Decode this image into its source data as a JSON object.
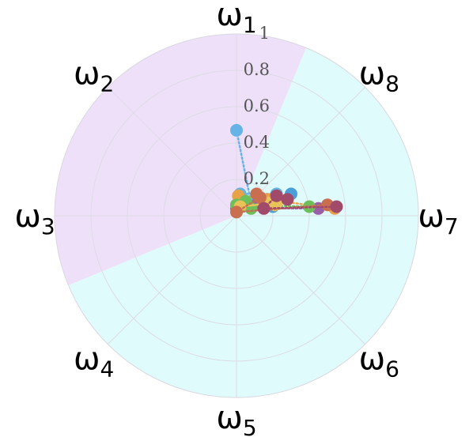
{
  "chart_data": {
    "type": "radar",
    "axes": [
      {
        "sym": "ω",
        "sub": "1"
      },
      {
        "sym": "ω",
        "sub": "2"
      },
      {
        "sym": "ω",
        "sub": "3"
      },
      {
        "sym": "ω",
        "sub": "4"
      },
      {
        "sym": "ω",
        "sub": "5"
      },
      {
        "sym": "ω",
        "sub": "6"
      },
      {
        "sym": "ω",
        "sub": "7"
      },
      {
        "sym": "ω",
        "sub": "8"
      }
    ],
    "radial_ticks": [
      "0.2",
      "0.4",
      "0.6",
      "0.8",
      "1"
    ],
    "rlim": [
      0,
      1
    ],
    "grid": true,
    "regions": [
      {
        "start_angle_deg_cw_from_top": 22.5,
        "end_angle_deg_cw_from_top": 247.5,
        "color": "#e0fbfc"
      },
      {
        "start_angle_deg_cw_from_top": 247.5,
        "end_angle_deg_cw_from_top": 382.5,
        "color": "#efe0fa"
      }
    ],
    "series": [
      {
        "color": "#66b3e6",
        "points": [
          [
            0.0,
            0.47
          ],
          [
            0.08,
            0.07
          ],
          [
            0.02,
            0.12
          ],
          [
            0.22,
            0.12
          ]
        ]
      },
      {
        "color": "#4a9fd8",
        "points": [
          [
            0.0,
            0.06
          ],
          [
            0.15,
            0.05
          ],
          [
            0.3,
            0.12
          ],
          [
            0.2,
            0.05
          ]
        ]
      },
      {
        "color": "#e8a24a",
        "points": [
          [
            0.17,
            0.09
          ],
          [
            0.21,
            0.08
          ],
          [
            0.01,
            0.11
          ],
          [
            0.54,
            0.04
          ]
        ]
      },
      {
        "color": "#9b5fa8",
        "points": [
          [
            0.15,
            0.05
          ],
          [
            0.11,
            0.06
          ],
          [
            0.0,
            0.04
          ],
          [
            0.45,
            0.04
          ]
        ]
      },
      {
        "color": "#6ebf5a",
        "points": [
          [
            0.08,
            0.04
          ],
          [
            0.05,
            0.08
          ],
          [
            0.0,
            0.06
          ],
          [
            0.4,
            0.05
          ]
        ]
      },
      {
        "color": "#e8c35a",
        "points": [
          [
            0.21,
            0.06
          ],
          [
            0.22,
            0.07
          ],
          [
            0.02,
            0.05
          ],
          [
            0.18,
            0.07
          ]
        ]
      },
      {
        "color": "#c96f50",
        "points": [
          [
            0.11,
            0.12
          ],
          [
            0.13,
            0.1
          ],
          [
            0.0,
            0.02
          ],
          [
            0.5,
            0.06
          ]
        ]
      },
      {
        "color": "#a24a6a",
        "points": [
          [
            0.28,
            0.09
          ],
          [
            0.22,
            0.11
          ],
          [
            0.15,
            0.04
          ],
          [
            0.55,
            0.05
          ]
        ]
      }
    ]
  }
}
